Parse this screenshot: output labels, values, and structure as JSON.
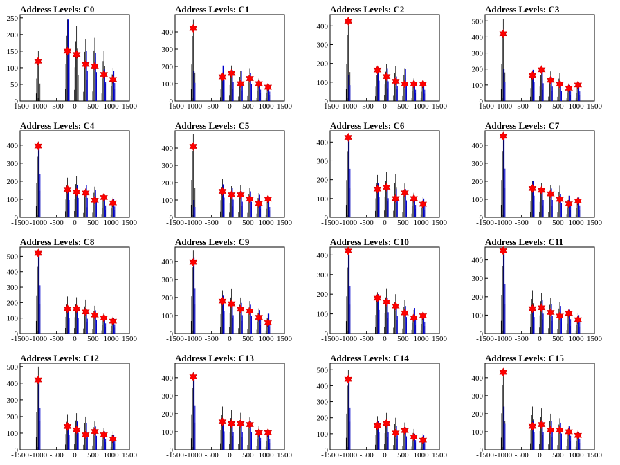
{
  "charts": [
    {
      "title": "Address Levels: C0",
      "ylim": [
        0,
        260
      ],
      "yticks": [
        0,
        50,
        100,
        150,
        200,
        250
      ],
      "x": [
        -1000,
        -200,
        50,
        300,
        550,
        800,
        1050
      ],
      "values": [
        120,
        150,
        140,
        110,
        105,
        80,
        65
      ],
      "black_peaks": [
        150,
        245,
        225,
        185,
        190,
        150,
        100
      ],
      "blue_peaks": [
        0,
        245,
        0,
        150,
        145,
        95,
        90
      ]
    },
    {
      "title": "Address Levels: C1",
      "ylim": [
        0,
        500
      ],
      "yticks": [
        0,
        100,
        200,
        300,
        400
      ],
      "x": [
        -1000,
        -200,
        50,
        300,
        550,
        800,
        1050
      ],
      "values": [
        420,
        140,
        160,
        100,
        130,
        100,
        80
      ],
      "black_peaks": [
        470,
        150,
        205,
        175,
        190,
        130,
        100
      ],
      "blue_peaks": [
        175,
        205,
        180,
        175,
        160,
        110,
        90
      ]
    },
    {
      "title": "Address Levels: C2",
      "ylim": [
        0,
        460
      ],
      "yticks": [
        0,
        100,
        200,
        300,
        400
      ],
      "x": [
        -1000,
        -200,
        50,
        300,
        550,
        800,
        1050
      ],
      "values": [
        425,
        165,
        130,
        105,
        90,
        90,
        90
      ],
      "black_peaks": [
        440,
        170,
        195,
        185,
        175,
        120,
        110
      ],
      "blue_peaks": [
        140,
        180,
        175,
        130,
        170,
        100,
        100
      ]
    },
    {
      "title": "Address Levels: C3",
      "ylim": [
        0,
        540
      ],
      "yticks": [
        0,
        100,
        200,
        300,
        400,
        500
      ],
      "x": [
        -1000,
        -200,
        50,
        300,
        550,
        800,
        1050
      ],
      "values": [
        420,
        160,
        195,
        130,
        105,
        80,
        100
      ],
      "black_peaks": [
        510,
        180,
        200,
        185,
        175,
        110,
        110
      ],
      "blue_peaks": [
        200,
        195,
        185,
        150,
        100,
        100,
        100
      ]
    },
    {
      "title": "Address Levels: C4",
      "ylim": [
        0,
        480
      ],
      "yticks": [
        0,
        100,
        200,
        300,
        400
      ],
      "x": [
        -1000,
        -200,
        50,
        300,
        550,
        800,
        1050
      ],
      "values": [
        395,
        155,
        140,
        135,
        95,
        110,
        80
      ],
      "black_peaks": [
        420,
        220,
        230,
        160,
        170,
        120,
        110
      ],
      "blue_peaks": [
        400,
        160,
        180,
        180,
        150,
        110,
        100
      ]
    },
    {
      "title": "Address Levels: C5",
      "ylim": [
        0,
        500
      ],
      "yticks": [
        0,
        100,
        200,
        300,
        400
      ],
      "x": [
        -1000,
        -200,
        50,
        300,
        550,
        800,
        1050
      ],
      "values": [
        410,
        150,
        130,
        130,
        105,
        80,
        105
      ],
      "black_peaks": [
        480,
        220,
        180,
        185,
        170,
        140,
        110
      ],
      "blue_peaks": [
        100,
        190,
        170,
        150,
        150,
        130,
        100
      ]
    },
    {
      "title": "Address Levels: C6",
      "ylim": [
        0,
        460
      ],
      "yticks": [
        0,
        100,
        200,
        300,
        400
      ],
      "x": [
        -1000,
        -200,
        50,
        300,
        550,
        800,
        1050
      ],
      "values": [
        425,
        150,
        160,
        100,
        130,
        100,
        70
      ],
      "black_peaks": [
        440,
        225,
        240,
        230,
        180,
        130,
        110
      ],
      "blue_peaks": [
        430,
        180,
        170,
        150,
        150,
        110,
        100
      ]
    },
    {
      "title": "Address Levels: C7",
      "ylim": [
        0,
        480
      ],
      "yticks": [
        0,
        100,
        200,
        300,
        400
      ],
      "x": [
        -1000,
        -200,
        50,
        300,
        550,
        800,
        1050
      ],
      "values": [
        450,
        160,
        150,
        130,
        100,
        75,
        90
      ],
      "black_peaks": [
        460,
        200,
        190,
        180,
        175,
        120,
        115
      ],
      "blue_peaks": [
        450,
        200,
        160,
        160,
        130,
        120,
        110
      ]
    },
    {
      "title": "Address Levels: C8",
      "ylim": [
        0,
        560
      ],
      "yticks": [
        0,
        100,
        200,
        300,
        400,
        500
      ],
      "x": [
        -1000,
        -200,
        50,
        300,
        550,
        800,
        1050
      ],
      "values": [
        520,
        160,
        160,
        140,
        120,
        100,
        80
      ],
      "black_peaks": [
        540,
        240,
        235,
        220,
        180,
        130,
        110
      ],
      "blue_peaks": [
        520,
        170,
        170,
        160,
        150,
        110,
        100
      ]
    },
    {
      "title": "Address Levels: C9",
      "ylim": [
        0,
        480
      ],
      "yticks": [
        0,
        100,
        200,
        300,
        400
      ],
      "x": [
        -1000,
        -200,
        50,
        300,
        550,
        800,
        1050
      ],
      "values": [
        395,
        180,
        165,
        135,
        125,
        90,
        60
      ],
      "black_peaks": [
        460,
        240,
        250,
        200,
        180,
        140,
        110
      ],
      "blue_peaks": [
        420,
        210,
        170,
        170,
        160,
        130,
        110
      ]
    },
    {
      "title": "Address Levels: C10",
      "ylim": [
        0,
        440
      ],
      "yticks": [
        0,
        100,
        200,
        300,
        400
      ],
      "x": [
        -1000,
        -200,
        50,
        300,
        550,
        800,
        1050
      ],
      "values": [
        420,
        180,
        160,
        140,
        105,
        80,
        90
      ],
      "black_peaks": [
        420,
        210,
        230,
        200,
        170,
        120,
        110
      ],
      "blue_peaks": [
        400,
        200,
        180,
        150,
        140,
        130,
        100
      ]
    },
    {
      "title": "Address Levels: C11",
      "ylim": [
        0,
        470
      ],
      "yticks": [
        0,
        100,
        200,
        300,
        400
      ],
      "x": [
        -1000,
        -200,
        50,
        300,
        550,
        800,
        1050
      ],
      "values": [
        450,
        135,
        140,
        115,
        95,
        110,
        75
      ],
      "black_peaks": [
        460,
        235,
        220,
        195,
        170,
        120,
        110
      ],
      "blue_peaks": [
        450,
        150,
        180,
        160,
        150,
        130,
        100
      ]
    },
    {
      "title": "Address Levels: C12",
      "ylim": [
        0,
        520
      ],
      "yticks": [
        0,
        100,
        200,
        300,
        400,
        500
      ],
      "x": [
        -1000,
        -200,
        50,
        300,
        550,
        800,
        1050
      ],
      "values": [
        420,
        140,
        120,
        90,
        110,
        90,
        65
      ],
      "black_peaks": [
        500,
        210,
        220,
        200,
        170,
        130,
        110
      ],
      "blue_peaks": [
        420,
        150,
        170,
        160,
        140,
        110,
        90
      ]
    },
    {
      "title": "Address Levels: C13",
      "ylim": [
        0,
        480
      ],
      "yticks": [
        0,
        100,
        200,
        300,
        400
      ],
      "x": [
        -1000,
        -200,
        50,
        300,
        550,
        800,
        1050
      ],
      "values": [
        405,
        155,
        145,
        145,
        140,
        95,
        95
      ],
      "black_peaks": [
        430,
        240,
        220,
        205,
        180,
        130,
        110
      ],
      "blue_peaks": [
        405,
        170,
        160,
        160,
        160,
        110,
        100
      ]
    },
    {
      "title": "Address Levels: C14",
      "ylim": [
        0,
        540
      ],
      "yticks": [
        0,
        100,
        200,
        300,
        400,
        500
      ],
      "x": [
        -1000,
        -200,
        50,
        300,
        550,
        800,
        1050
      ],
      "values": [
        440,
        150,
        165,
        105,
        120,
        80,
        60
      ],
      "black_peaks": [
        500,
        210,
        230,
        200,
        170,
        130,
        100
      ],
      "blue_peaks": [
        440,
        180,
        180,
        150,
        140,
        100,
        90
      ]
    },
    {
      "title": "Address Levels: C15",
      "ylim": [
        0,
        480
      ],
      "yticks": [
        0,
        100,
        200,
        300,
        400
      ],
      "x": [
        -1000,
        -200,
        50,
        300,
        550,
        800,
        1050
      ],
      "values": [
        430,
        130,
        140,
        110,
        110,
        100,
        80
      ],
      "black_peaks": [
        450,
        240,
        230,
        200,
        175,
        130,
        110
      ],
      "blue_peaks": [
        240,
        160,
        160,
        160,
        150,
        130,
        100
      ]
    }
  ],
  "x_axis": {
    "ticks": [
      -1500,
      -1000,
      -500,
      0,
      500,
      1000,
      1500
    ],
    "labels": [
      "-1500",
      "-1000",
      "-500",
      "0",
      "500",
      "1000",
      "1500"
    ],
    "range": [
      -1500,
      1500
    ]
  },
  "colors": {
    "marker": "#ff0000",
    "marker_edge": "#cc0000",
    "blue": "#0000cc",
    "black": "#000000"
  }
}
